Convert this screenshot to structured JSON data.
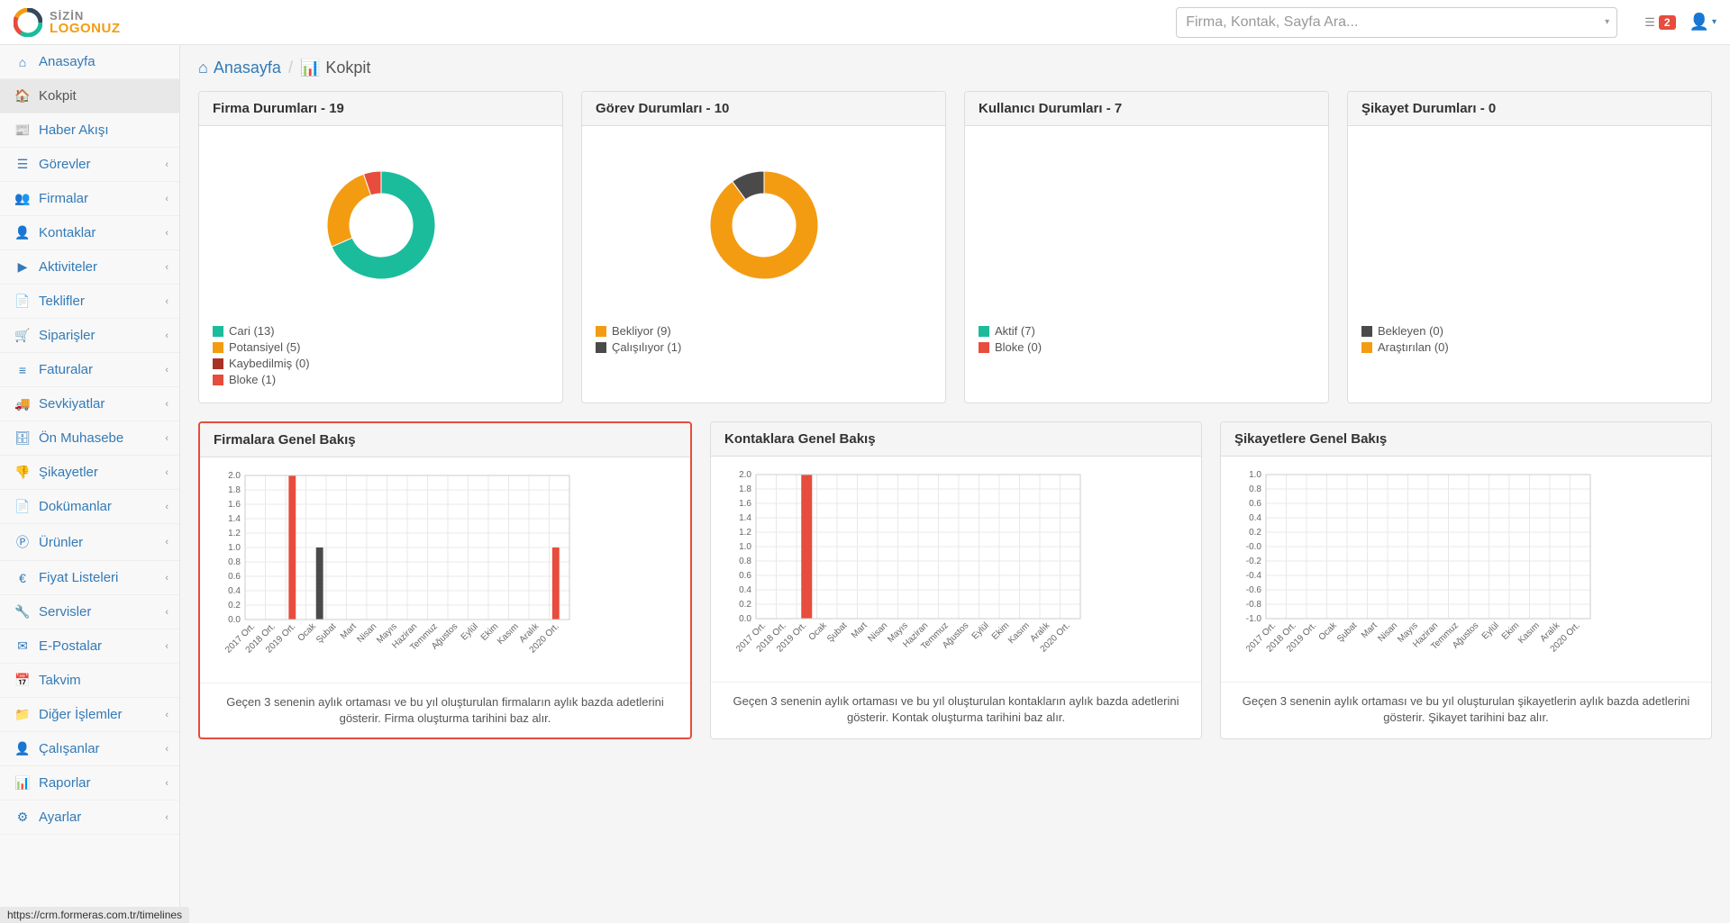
{
  "colors": {
    "teal": "#1abc9c",
    "orange": "#f39c12",
    "darkred": "#a93226",
    "red": "#e74c3c",
    "darkgray": "#4a4a4a",
    "blue": "#337ab7",
    "grid": "#e8e8e8",
    "text": "#555555"
  },
  "header": {
    "logo_line1": "SİZİN",
    "logo_line2": "LOGONUZ",
    "search_placeholder": "Firma, Kontak, Sayfa Ara...",
    "notif_count": "2"
  },
  "sidebar": {
    "items": [
      {
        "icon": "home",
        "label": "Anasayfa",
        "has_sub": false,
        "active": false
      },
      {
        "icon": "dashboard",
        "label": "Kokpit",
        "has_sub": false,
        "active": true
      },
      {
        "icon": "newspaper",
        "label": "Haber Akışı",
        "has_sub": false,
        "active": false
      },
      {
        "icon": "tasks",
        "label": "Görevler",
        "has_sub": true,
        "active": false
      },
      {
        "icon": "users",
        "label": "Firmalar",
        "has_sub": true,
        "active": false
      },
      {
        "icon": "user",
        "label": "Kontaklar",
        "has_sub": true,
        "active": false
      },
      {
        "icon": "play",
        "label": "Aktiviteler",
        "has_sub": true,
        "active": false
      },
      {
        "icon": "file",
        "label": "Teklifler",
        "has_sub": true,
        "active": false
      },
      {
        "icon": "cart",
        "label": "Siparişler",
        "has_sub": true,
        "active": false
      },
      {
        "icon": "list",
        "label": "Faturalar",
        "has_sub": true,
        "active": false
      },
      {
        "icon": "truck",
        "label": "Sevkiyatlar",
        "has_sub": true,
        "active": false
      },
      {
        "icon": "calc",
        "label": "Ön Muhasebe",
        "has_sub": true,
        "active": false
      },
      {
        "icon": "thumbsdown",
        "label": "Şikayetler",
        "has_sub": true,
        "active": false
      },
      {
        "icon": "doc",
        "label": "Dokümanlar",
        "has_sub": true,
        "active": false
      },
      {
        "icon": "product",
        "label": "Ürünler",
        "has_sub": true,
        "active": false
      },
      {
        "icon": "euro",
        "label": "Fiyat Listeleri",
        "has_sub": true,
        "active": false
      },
      {
        "icon": "wrench",
        "label": "Servisler",
        "has_sub": true,
        "active": false
      },
      {
        "icon": "mail",
        "label": "E-Postalar",
        "has_sub": true,
        "active": false
      },
      {
        "icon": "calendar",
        "label": "Takvim",
        "has_sub": false,
        "active": false
      },
      {
        "icon": "folder",
        "label": "Diğer İşlemler",
        "has_sub": true,
        "active": false
      },
      {
        "icon": "employee",
        "label": "Çalışanlar",
        "has_sub": true,
        "active": false
      },
      {
        "icon": "chart",
        "label": "Raporlar",
        "has_sub": true,
        "active": false
      },
      {
        "icon": "gear",
        "label": "Ayarlar",
        "has_sub": true,
        "active": false
      }
    ]
  },
  "breadcrumb": {
    "home": "Anasayfa",
    "current": "Kokpit"
  },
  "donut_cards": [
    {
      "title": "Firma Durumları - 19",
      "slices": [
        {
          "label": "Cari (13)",
          "value": 13,
          "color": "#1abc9c"
        },
        {
          "label": "Potansiyel (5)",
          "value": 5,
          "color": "#f39c12"
        },
        {
          "label": "Kaybedilmiş (0)",
          "value": 0,
          "color": "#a93226"
        },
        {
          "label": "Bloke (1)",
          "value": 1,
          "color": "#e74c3c"
        }
      ]
    },
    {
      "title": "Görev Durumları - 10",
      "slices": [
        {
          "label": "Bekliyor (9)",
          "value": 9,
          "color": "#f39c12"
        },
        {
          "label": "Çalışılıyor (1)",
          "value": 1,
          "color": "#4a4a4a"
        }
      ],
      "swap_dominant": true
    },
    {
      "title": "Kullanıcı Durumları - 7",
      "slices": [
        {
          "label": "Aktif (7)",
          "value": 7,
          "color": "#1abc9c"
        },
        {
          "label": "Bloke (0)",
          "value": 0,
          "color": "#e74c3c"
        }
      ]
    },
    {
      "title": "Şikayet Durumları - 0",
      "slices": [
        {
          "label": "Bekleyen (0)",
          "value": 0,
          "color": "#4a4a4a"
        },
        {
          "label": "Araştırılan (0)",
          "value": 0,
          "color": "#f39c12"
        }
      ],
      "empty": true
    }
  ],
  "bar_cards": [
    {
      "title": "Firmalara Genel Bakış",
      "highlighted": true,
      "ylim": [
        0,
        2.0
      ],
      "ytick_step": 0.2,
      "categories": [
        "2017 Ort.",
        "2018 Ort.",
        "2019 Ort.",
        "Ocak",
        "Şubat",
        "Mart",
        "Nisan",
        "Mayıs",
        "Haziran",
        "Temmuz",
        "Ağustos",
        "Eylül",
        "Ekim",
        "Kasım",
        "Aralık",
        "2020 Ort."
      ],
      "series": [
        {
          "color": "#e74c3c",
          "values": [
            0,
            0,
            2.0,
            0,
            0,
            0,
            0,
            0,
            0,
            0,
            0,
            0,
            0,
            0,
            0,
            1.0
          ]
        },
        {
          "color": "#4a4a4a",
          "values": [
            0,
            0,
            0,
            1.0,
            0,
            0,
            0,
            0,
            0,
            0,
            0,
            0,
            0,
            0,
            0,
            0
          ]
        }
      ],
      "footer": "Geçen 3 senenin aylık ortaması ve bu yıl oluşturulan firmaların aylık bazda adetlerini gösterir. Firma oluşturma tarihini baz alır."
    },
    {
      "title": "Kontaklara Genel Bakış",
      "highlighted": false,
      "ylim": [
        0,
        2.0
      ],
      "ytick_step": 0.2,
      "categories": [
        "2017 Ort.",
        "2018 Ort.",
        "2019 Ort.",
        "Ocak",
        "Şubat",
        "Mart",
        "Nisan",
        "Mayıs",
        "Haziran",
        "Temmuz",
        "Ağustos",
        "Eylül",
        "Ekim",
        "Kasım",
        "Aralık",
        "2020 Ort."
      ],
      "series": [
        {
          "color": "#e74c3c",
          "values": [
            0,
            0,
            2.0,
            0,
            0,
            0,
            0,
            0,
            0,
            0,
            0,
            0,
            0,
            0,
            0,
            0
          ]
        }
      ],
      "footer": "Geçen 3 senenin aylık ortaması ve bu yıl oluşturulan kontakların aylık bazda adetlerini gösterir. Kontak oluşturma tarihini baz alır."
    },
    {
      "title": "Şikayetlere Genel Bakış",
      "highlighted": false,
      "ylim": [
        -1.0,
        1.0
      ],
      "ytick_step": 0.2,
      "categories": [
        "2017 Ort.",
        "2018 Ort.",
        "2019 Ort.",
        "Ocak",
        "Şubat",
        "Mart",
        "Nisan",
        "Mayıs",
        "Haziran",
        "Temmuz",
        "Ağustos",
        "Eylül",
        "Ekim",
        "Kasım",
        "Aralık",
        "2020 Ort."
      ],
      "series": [],
      "footer": "Geçen 3 senenin aylık ortaması ve bu yıl oluşturulan şikayetlerin aylık bazda adetlerini gösterir. Şikayet tarihini baz alır."
    }
  ],
  "status_url": "https://crm.formeras.com.tr/timelines"
}
